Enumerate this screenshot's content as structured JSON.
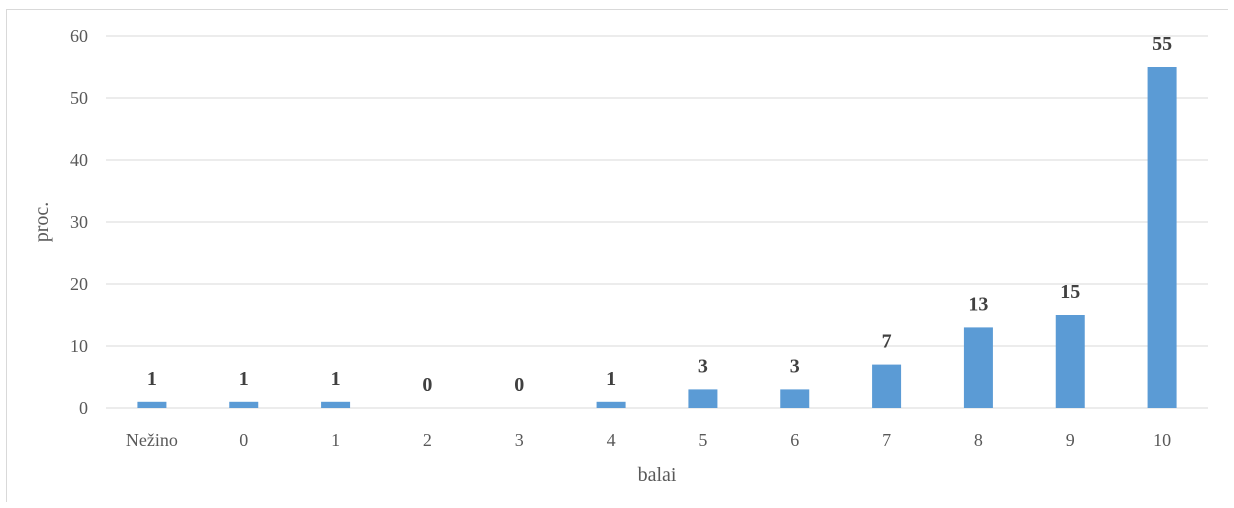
{
  "chart_data": {
    "type": "bar",
    "title": "",
    "xlabel": "balai",
    "ylabel": "proc.",
    "categories": [
      "Nežino",
      "0",
      "1",
      "2",
      "3",
      "4",
      "5",
      "6",
      "7",
      "8",
      "9",
      "10"
    ],
    "values": [
      1,
      1,
      1,
      0,
      0,
      1,
      3,
      3,
      7,
      13,
      15,
      55
    ],
    "ylim": [
      0,
      60
    ],
    "yticks": [
      0,
      10,
      20,
      30,
      40,
      50,
      60
    ],
    "grid": true,
    "data_labels": true,
    "bar_color": "#5b9bd5"
  }
}
